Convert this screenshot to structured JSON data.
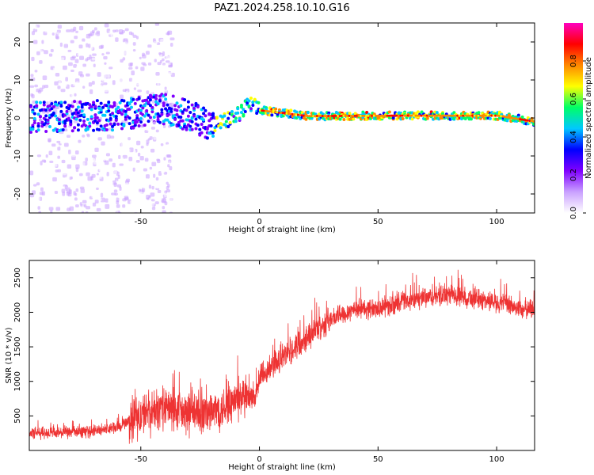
{
  "title": "PAZ1.2024.258.10.10.G16",
  "chart_data": [
    {
      "type": "heatmap",
      "xlabel": "Height of straight line (km)",
      "ylabel": "Frequency (Hz)",
      "xlim": [
        -97,
        116
      ],
      "ylim": [
        -25,
        25
      ],
      "xticks": [
        -50,
        0,
        50,
        100
      ],
      "yticks": [
        -20,
        -10,
        0,
        10,
        20
      ],
      "colorbar": {
        "label": "Normalized spectral amplitude",
        "range": [
          0,
          1
        ],
        "ticks": [
          0.0,
          0.2,
          0.4,
          0.6,
          0.8
        ],
        "colormap": [
          "#ffffff",
          "#c9a0ff",
          "#8000ff",
          "#0000ff",
          "#00c8ff",
          "#00ff66",
          "#ffff00",
          "#ff8800",
          "#ff0000",
          "#ff00c0"
        ]
      },
      "ridge": [
        {
          "x": -97,
          "freq": 0.2
        },
        {
          "x": -60,
          "freq": 0.8
        },
        {
          "x": -40,
          "freq": 2.5
        },
        {
          "x": -30,
          "freq": 0.5
        },
        {
          "x": -20,
          "freq": -2.0
        },
        {
          "x": -10,
          "freq": 0.5
        },
        {
          "x": -5,
          "freq": 3.5
        },
        {
          "x": 0,
          "freq": 2.0
        },
        {
          "x": 20,
          "freq": 0.5
        },
        {
          "x": 60,
          "freq": 0.6
        },
        {
          "x": 100,
          "freq": 0.6
        },
        {
          "x": 116,
          "freq": -1.0
        }
      ]
    },
    {
      "type": "line",
      "xlabel": "Height of straight line (km)",
      "ylabel": "SNR (10 * v/v)",
      "xlim": [
        -97,
        116
      ],
      "ylim": [
        0,
        2750
      ],
      "xticks": [
        -50,
        0,
        50,
        100
      ],
      "yticks": [
        500,
        1000,
        1500,
        2000,
        2500
      ],
      "series": [
        {
          "color": "#ee3333",
          "x": [
            -97,
            -90,
            -80,
            -70,
            -60,
            -50,
            -40,
            -30,
            -20,
            -10,
            -5,
            -2,
            0,
            5,
            10,
            20,
            30,
            40,
            50,
            60,
            70,
            80,
            90,
            100,
            110,
            116
          ],
          "values": [
            250,
            250,
            260,
            280,
            330,
            500,
            620,
            520,
            550,
            720,
            760,
            700,
            1050,
            1200,
            1350,
            1650,
            1900,
            2050,
            2050,
            2150,
            2200,
            2250,
            2200,
            2150,
            2050,
            2050
          ]
        }
      ]
    }
  ]
}
